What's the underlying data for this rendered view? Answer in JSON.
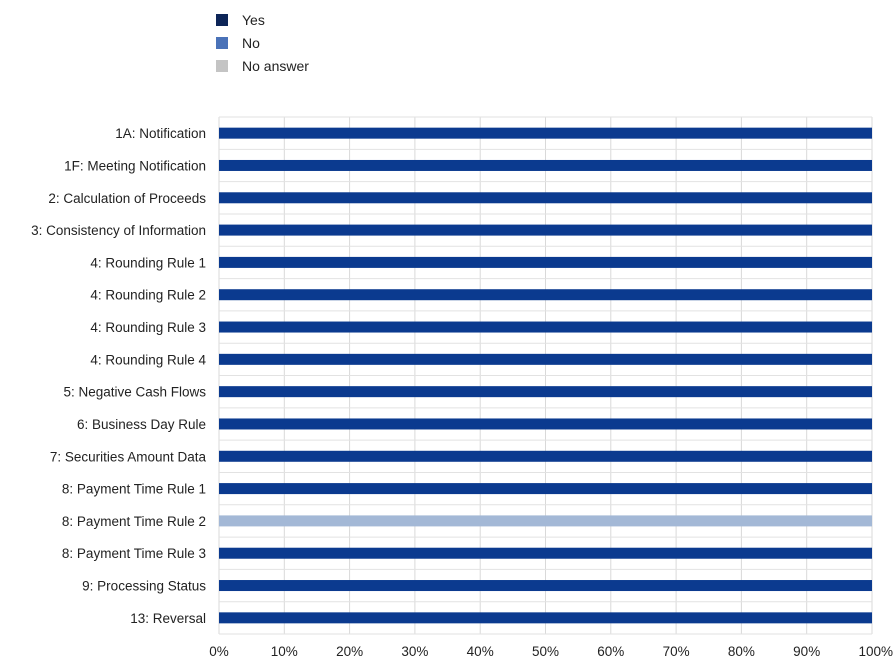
{
  "chart_data": {
    "type": "bar",
    "orientation": "horizontal",
    "stacked": true,
    "categories": [
      "1A: Notification",
      "1F: Meeting Notification",
      "2: Calculation of Proceeds",
      "3: Consistency of Information",
      "4: Rounding Rule 1",
      "4: Rounding Rule 2",
      "4: Rounding Rule 3",
      "4: Rounding Rule 4",
      "5: Negative Cash Flows",
      "6: Business Day Rule",
      "7: Securities Amount Data",
      "8: Payment Time Rule 1",
      "8: Payment Time Rule 2",
      "8: Payment Time Rule 3",
      "9: Processing Status",
      "13: Reversal"
    ],
    "series": [
      {
        "name": "Yes",
        "color": "#0b3a8f",
        "values": [
          100,
          100,
          100,
          100,
          100,
          100,
          100,
          100,
          100,
          100,
          100,
          100,
          0,
          100,
          100,
          100
        ]
      },
      {
        "name": "No",
        "color": "#4a72b8",
        "values": [
          0,
          0,
          0,
          0,
          0,
          0,
          0,
          0,
          0,
          0,
          0,
          0,
          0,
          0,
          0,
          0
        ]
      },
      {
        "name": "No answer",
        "color": "#c4c4c4",
        "values": [
          0,
          0,
          0,
          0,
          0,
          0,
          0,
          0,
          0,
          0,
          0,
          0,
          100,
          0,
          0,
          0
        ]
      }
    ],
    "highlight_color": "#a3b8d6",
    "xticks": [
      "0%",
      "10%",
      "20%",
      "30%",
      "40%",
      "50%",
      "60%",
      "70%",
      "80%",
      "90%",
      "100%"
    ],
    "xlim": [
      0,
      100
    ],
    "grid": true,
    "legend_position": "top-left",
    "legend_swatch_colors": {
      "Yes": "#0d2558",
      "No": "#4a72b8",
      "No answer": "#c4c4c4"
    }
  }
}
